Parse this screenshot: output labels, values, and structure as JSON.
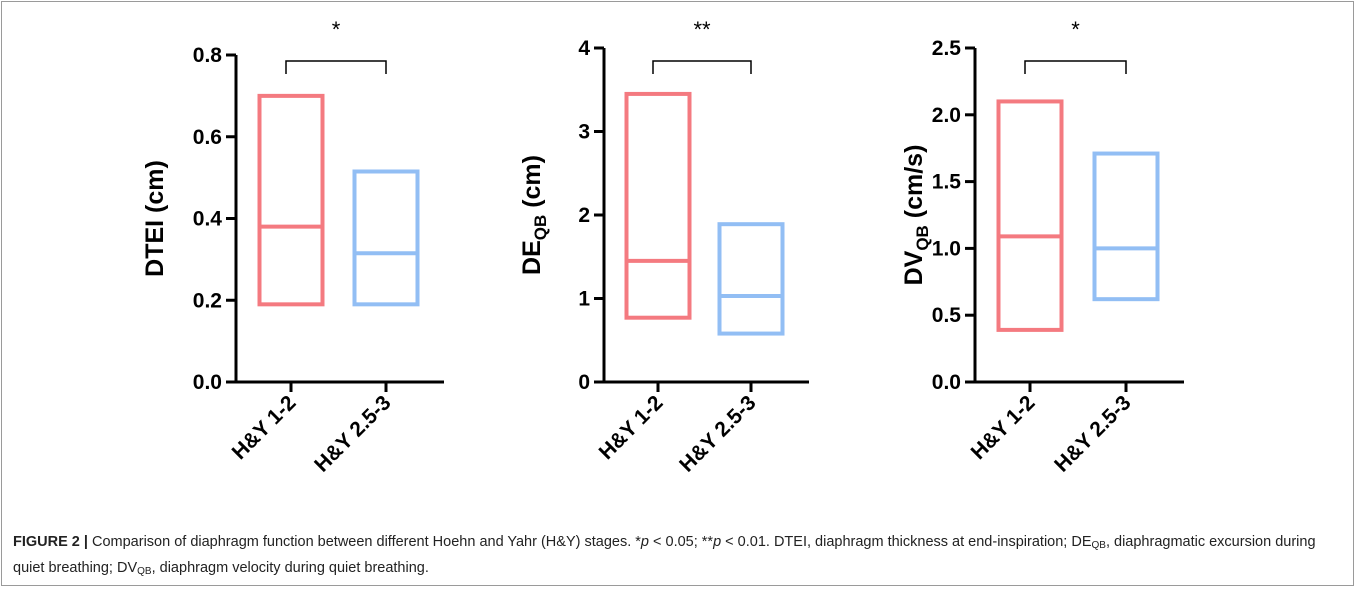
{
  "chart_data": [
    {
      "type": "box",
      "ylabel": "DTEI (cm)",
      "ylim": [
        0,
        0.8
      ],
      "yticks": [
        "0.0",
        "0.2",
        "0.4",
        "0.6",
        "0.8"
      ],
      "categories": [
        "H&Y 1-2",
        "H&Y 2.5-3"
      ],
      "boxes": [
        {
          "low": 0.19,
          "median": 0.38,
          "high": 0.7,
          "color": "#f47a80"
        },
        {
          "low": 0.19,
          "median": 0.315,
          "high": 0.515,
          "color": "#92bef4"
        }
      ],
      "significance": "*"
    },
    {
      "type": "box",
      "ylabel": "DE",
      "ylabel_sub": "QB",
      "ylabel_suffix": " (cm)",
      "ylim": [
        0,
        4
      ],
      "yticks": [
        "0",
        "1",
        "2",
        "3",
        "4"
      ],
      "categories": [
        "H&Y 1-2",
        "H&Y 2.5-3"
      ],
      "boxes": [
        {
          "low": 0.77,
          "median": 1.45,
          "high": 3.45,
          "color": "#f47a80"
        },
        {
          "low": 0.58,
          "median": 1.03,
          "high": 1.89,
          "color": "#92bef4"
        }
      ],
      "significance": "**"
    },
    {
      "type": "box",
      "ylabel": "DV",
      "ylabel_sub": "QB",
      "ylabel_suffix": " (cm/s)",
      "ylim": [
        0,
        2.5
      ],
      "yticks": [
        "0.0",
        "0.5",
        "1.0",
        "1.5",
        "2.0",
        "2.5"
      ],
      "categories": [
        "H&Y 1-2",
        "H&Y 2.5-3"
      ],
      "boxes": [
        {
          "low": 0.39,
          "median": 1.09,
          "high": 2.1,
          "color": "#f47a80"
        },
        {
          "low": 0.62,
          "median": 1.0,
          "high": 1.71,
          "color": "#92bef4"
        }
      ],
      "significance": "*"
    }
  ],
  "caption": {
    "figure_number": "FIGURE 2 |",
    "part1": " Comparison of diaphragm function between different Hoehn and Yahr (H&Y) stages. *",
    "p_symbol": "p",
    "part2": " < 0.05; **",
    "part3": " < 0.01. DTEI, diaphragm thickness at end-inspiration; DE",
    "sub_qb": "QB",
    "part4": ", diaphragmatic excursion during quiet breathing; DV",
    "part5": ", diaphragm velocity during quiet breathing."
  }
}
